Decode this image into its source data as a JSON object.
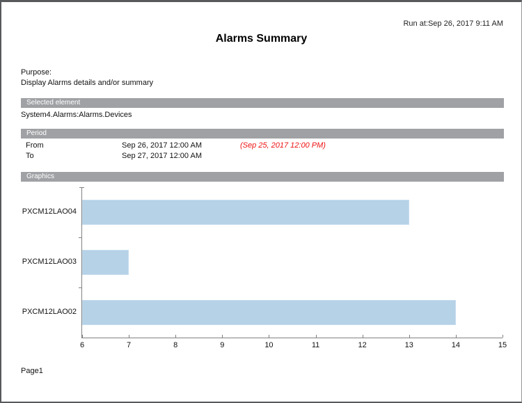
{
  "header": {
    "run_at": "Run at:Sep 26, 2017 9:11 AM",
    "title": "Alarms Summary"
  },
  "purpose": {
    "label": "Purpose:",
    "text": "Display Alarms details and/or summary"
  },
  "sections": {
    "selected_element": {
      "header": "Selected element",
      "value": "System4.Alarms:Alarms.Devices"
    },
    "period": {
      "header": "Period",
      "rows": [
        {
          "label": "From",
          "value": "Sep 26, 2017 12:00 AM",
          "note": "(Sep 25, 2017 12:00 PM)"
        },
        {
          "label": "To",
          "value": "Sep 27, 2017 12:00 AM",
          "note": ""
        }
      ]
    },
    "graphics": {
      "header": "Graphics"
    }
  },
  "chart_data": {
    "type": "bar",
    "orientation": "horizontal",
    "title": "",
    "xlabel": "",
    "ylabel": "",
    "categories": [
      "PXCM12LAO04",
      "PXCM12LAO03",
      "PXCM12LAO02"
    ],
    "values": [
      13,
      7,
      14
    ],
    "xlim": [
      6,
      15
    ],
    "xticks": [
      6,
      7,
      8,
      9,
      10,
      11,
      12,
      13,
      14,
      15
    ],
    "grid": false,
    "legend": false,
    "bar_color": "#b6d2e7",
    "bar_border_color": "#c6dcee",
    "axis_color": "#808080"
  },
  "footer": {
    "page": "Page1"
  },
  "colors": {
    "section_header_bg": "#9fa1a4",
    "section_header_text": "#ffffff",
    "note_red": "#ee1111",
    "page_border": "#58595b"
  }
}
